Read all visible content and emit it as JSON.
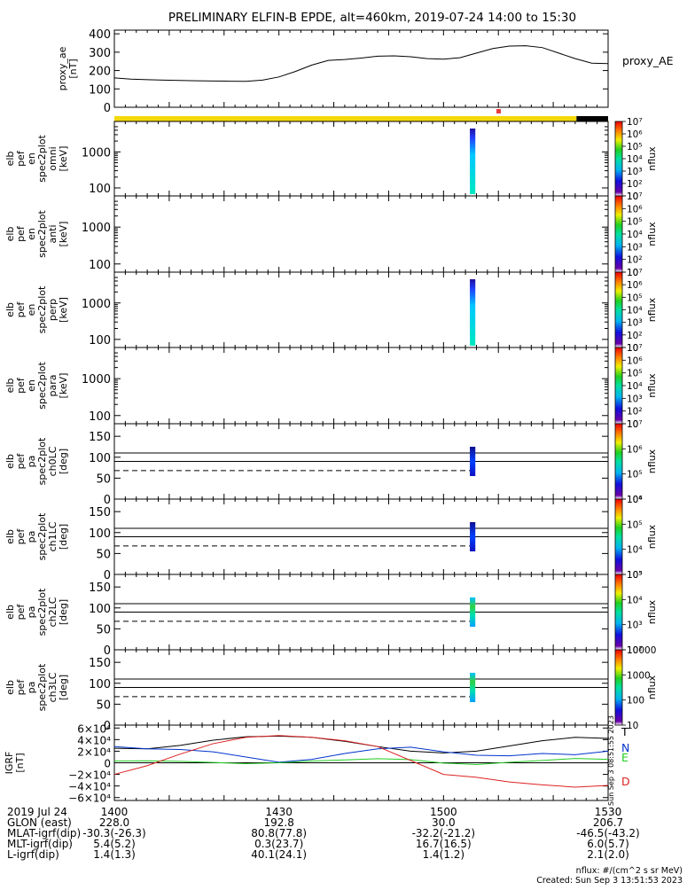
{
  "title": "PRELIMINARY ELFIN-B EPDE, alt=460km, 2019-07-24 14:00 to 15:30",
  "colors": {
    "bar_yellow": "#f4d90a",
    "bar_black": "#000000",
    "bar_red": "#e83d3d",
    "igrf_T": "#000000",
    "igrf_N": "#0033cc",
    "igrf_E": "#22cc22",
    "igrf_D": "#dd2222"
  },
  "sci_zones_fraction": [
    {
      "start": 0.0,
      "end": 0.936,
      "color": "yellow"
    },
    {
      "start": 0.936,
      "end": 1.0,
      "color": "black"
    }
  ],
  "ephemeris": {
    "rows": [
      {
        "label": "2019 Jul 24",
        "values": [
          "1400",
          "1430",
          "1500",
          "1530"
        ]
      },
      {
        "label": "GLON (east)",
        "values": [
          "228.0",
          "192.8",
          "30.0",
          "206.7"
        ]
      },
      {
        "label": "MLAT-igrf(dip)",
        "values": [
          "-30.3(-26.3)",
          "80.8(77.8)",
          "-32.2(-21.2)",
          "-46.5(-43.2)"
        ]
      },
      {
        "label": "MLT-igrf(dip)",
        "values": [
          "5.4(5.2)",
          "0.3(23.7)",
          "16.7(16.5)",
          "6.0(5.7)"
        ]
      },
      {
        "label": "L-igrf(dip)",
        "values": [
          "1.4(1.3)",
          "40.1(24.1)",
          "1.4(1.2)",
          "2.1(2.0)"
        ]
      }
    ]
  },
  "footer": {
    "units": "nflux: #/(cm^2 s sr MeV)",
    "created": "Created: Sun Sep  3 13:51:53 2023",
    "vertical_stamp": "Sun Sep  3 08:51:55 2023"
  },
  "chart_data": [
    {
      "type": "line",
      "panel": "proxy_ae",
      "ylabel": [
        "proxy_ae",
        "[nT]"
      ],
      "series": [
        {
          "name": "proxy_AE",
          "x": [
            0,
            3,
            6,
            9,
            12,
            15,
            18,
            21,
            24,
            27,
            30,
            33,
            36,
            39,
            42,
            45,
            48,
            51,
            54,
            57,
            60,
            63,
            66,
            69,
            72,
            75,
            78,
            81,
            84,
            87,
            90
          ],
          "y": [
            160,
            153,
            150,
            148,
            146,
            144,
            143,
            142,
            141,
            148,
            165,
            195,
            230,
            255,
            260,
            268,
            278,
            280,
            275,
            265,
            262,
            270,
            295,
            320,
            333,
            335,
            325,
            295,
            265,
            240,
            238
          ]
        }
      ],
      "yticks": [
        "400",
        "300",
        "200",
        "100",
        "0"
      ],
      "ylim": [
        0,
        420
      ]
    },
    {
      "type": "heatmap",
      "panel": "omni",
      "ylabel": [
        "elb",
        "pef",
        "en",
        "spec2plot",
        "omni",
        "[keV]"
      ],
      "yticks": [
        "1000",
        "100"
      ],
      "colorbar": {
        "label": "nflux",
        "ticks": [
          "10",
          "10²",
          "10³",
          "10⁴",
          "10⁵",
          "10⁶",
          "10⁷"
        ]
      },
      "burst_minutes": [
        64.8,
        65.8
      ]
    },
    {
      "type": "heatmap",
      "panel": "anti",
      "ylabel": [
        "elb",
        "pef",
        "en",
        "spec2plot",
        "anti",
        "[keV]"
      ],
      "yticks": [
        "1000",
        "100"
      ],
      "colorbar": {
        "label": "nflux",
        "ticks": [
          "10",
          "10²",
          "10³",
          "10⁴",
          "10⁵",
          "10⁶",
          "10⁷"
        ]
      },
      "burst_minutes": []
    },
    {
      "type": "heatmap",
      "panel": "perp",
      "ylabel": [
        "elb",
        "pef",
        "en",
        "spec2plot",
        "perp",
        "[keV]"
      ],
      "yticks": [
        "1000",
        "100"
      ],
      "colorbar": {
        "label": "nflux",
        "ticks": [
          "10",
          "10²",
          "10³",
          "10⁴",
          "10⁵",
          "10⁶",
          "10⁷"
        ]
      },
      "burst_minutes": [
        64.8,
        65.8
      ]
    },
    {
      "type": "heatmap",
      "panel": "para",
      "ylabel": [
        "elb",
        "pef",
        "en",
        "spec2plot",
        "para",
        "[keV]"
      ],
      "yticks": [
        "1000",
        "100"
      ],
      "colorbar": {
        "label": "nflux",
        "ticks": [
          "10",
          "10²",
          "10³",
          "10⁴",
          "10⁵",
          "10⁶",
          "10⁷"
        ]
      },
      "burst_minutes": []
    },
    {
      "type": "heatmap",
      "panel": "ch0LC",
      "ylabel": [
        "elb",
        "pef",
        "pa",
        "spec2plot",
        "ch0LC",
        "[deg]"
      ],
      "yticks": [
        "150",
        "100",
        "50",
        "0"
      ],
      "ylim": [
        0,
        180
      ],
      "ref_lines_deg": {
        "solid": [
          110,
          90
        ],
        "dashed": 68
      },
      "colorbar": {
        "label": "nflux",
        "ticks": [
          "10⁴",
          "10⁵",
          "10⁶",
          "10⁷"
        ]
      },
      "burst_minutes": [
        64.8,
        65.8
      ]
    },
    {
      "type": "heatmap",
      "panel": "ch1LC",
      "ylabel": [
        "elb",
        "pef",
        "pa",
        "spec2plot",
        "ch1LC",
        "[deg]"
      ],
      "yticks": [
        "150",
        "100",
        "50",
        "0"
      ],
      "ylim": [
        0,
        180
      ],
      "ref_lines_deg": {
        "solid": [
          110,
          90
        ],
        "dashed": 68
      },
      "colorbar": {
        "label": "nflux",
        "ticks": [
          "10³",
          "10⁴",
          "10⁵",
          "10⁶"
        ]
      },
      "burst_minutes": [
        64.8,
        65.8
      ]
    },
    {
      "type": "heatmap",
      "panel": "ch2LC",
      "ylabel": [
        "elb",
        "pef",
        "pa",
        "spec2plot",
        "ch2LC",
        "[deg]"
      ],
      "yticks": [
        "150",
        "100",
        "50",
        "0"
      ],
      "ylim": [
        0,
        180
      ],
      "ref_lines_deg": {
        "solid": [
          110,
          90
        ],
        "dashed": 68
      },
      "colorbar": {
        "label": "nflux",
        "ticks": [
          "10²",
          "10³",
          "10⁴",
          "10⁵"
        ]
      },
      "burst_minutes": [
        64.8,
        65.8
      ]
    },
    {
      "type": "heatmap",
      "panel": "ch3LC",
      "ylabel": [
        "elb",
        "pef",
        "pa",
        "spec2plot",
        "ch3LC",
        "[deg]"
      ],
      "yticks": [
        "150",
        "100",
        "50",
        "0"
      ],
      "ylim": [
        0,
        180
      ],
      "ref_lines_deg": {
        "solid": [
          110,
          90
        ],
        "dashed": 68
      },
      "colorbar": {
        "label": "nflux",
        "ticks": [
          "10",
          "100",
          "1000",
          "10000"
        ]
      },
      "burst_minutes": [
        64.8,
        65.8
      ]
    },
    {
      "type": "line",
      "panel": "igrf",
      "ylabel": [
        "IGRF",
        "[nT]"
      ],
      "yticks": [
        "6×10⁴",
        "4×10⁴",
        "2×10⁴",
        "0",
        "−2×10⁴",
        "−4×10⁴",
        "−6×10⁴"
      ],
      "ylim": [
        -65000,
        65000
      ],
      "series": [
        {
          "name": "T",
          "x": [
            0,
            6,
            12,
            18,
            24,
            30,
            36,
            42,
            48,
            54,
            60,
            66,
            72,
            78,
            84,
            90
          ],
          "y": [
            25000,
            24000,
            30000,
            39000,
            45000,
            46000,
            44000,
            37000,
            28000,
            20000,
            17000,
            20000,
            29000,
            38000,
            44000,
            42000
          ]
        },
        {
          "name": "N",
          "x": [
            0,
            6,
            12,
            18,
            24,
            30,
            36,
            42,
            48,
            54,
            60,
            66,
            72,
            78,
            84,
            90
          ],
          "y": [
            28000,
            24000,
            23000,
            19000,
            10000,
            1000,
            6000,
            16000,
            24000,
            27000,
            19000,
            13000,
            12000,
            16000,
            14000,
            20000
          ]
        },
        {
          "name": "E",
          "x": [
            0,
            6,
            12,
            18,
            24,
            30,
            36,
            42,
            48,
            54,
            60,
            66,
            72,
            78,
            84,
            90
          ],
          "y": [
            3000,
            3500,
            2500,
            500,
            -1500,
            0,
            3000,
            5000,
            7000,
            5500,
            -500,
            -3000,
            1000,
            4000,
            7500,
            6000
          ]
        },
        {
          "name": "D",
          "x": [
            0,
            6,
            12,
            18,
            24,
            30,
            36,
            42,
            48,
            54,
            60,
            66,
            72,
            78,
            84,
            90
          ],
          "y": [
            -20000,
            -5000,
            15000,
            33000,
            44000,
            47000,
            44000,
            38000,
            28000,
            4000,
            -20000,
            -25000,
            -33000,
            -38000,
            -42000,
            -39000
          ]
        }
      ]
    }
  ]
}
